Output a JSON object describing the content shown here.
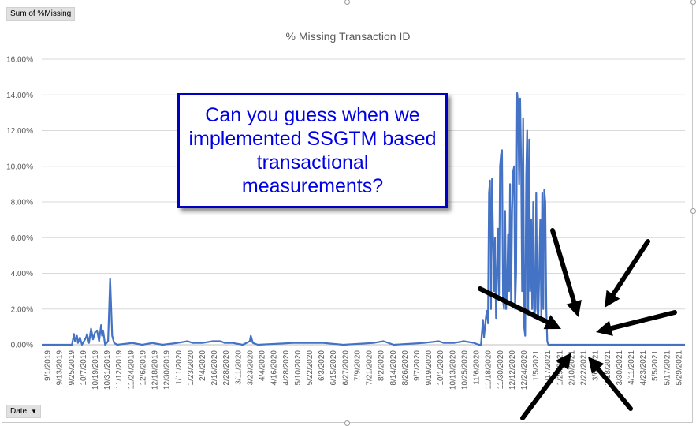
{
  "filter_button": {
    "label": "Sum of %Missing"
  },
  "axis_button": {
    "label": "Date"
  },
  "chart_data": {
    "type": "line",
    "title": "% Missing Transaction ID",
    "xlabel": "",
    "ylabel": "",
    "ylim": [
      0,
      0.16
    ],
    "ytick_labels": [
      "0.00%",
      "2.00%",
      "4.00%",
      "6.00%",
      "8.00%",
      "10.00%",
      "12.00%",
      "14.00%",
      "16.00%"
    ],
    "yticks": [
      0,
      0.02,
      0.04,
      0.06,
      0.08,
      0.1,
      0.12,
      0.14,
      0.16
    ],
    "grid": true,
    "line_color": "#4472C4",
    "xtick_labels": [
      "9/1/2019",
      "9/13/2019",
      "9/25/2019",
      "10/7/2019",
      "10/19/2019",
      "10/31/2019",
      "11/12/2019",
      "11/24/2019",
      "12/6/2019",
      "12/18/2019",
      "12/30/2019",
      "1/11/2020",
      "1/23/2020",
      "2/4/2020",
      "2/16/2020",
      "2/28/2020",
      "3/11/2020",
      "3/23/2020",
      "4/4/2020",
      "4/16/2020",
      "4/28/2020",
      "5/10/2020",
      "5/22/2020",
      "6/3/2020",
      "6/15/2020",
      "6/27/2020",
      "7/9/2020",
      "7/21/2020",
      "8/2/2020",
      "8/14/2020",
      "8/26/2020",
      "9/7/2020",
      "9/19/2020",
      "10/1/2020",
      "10/13/2020",
      "10/25/2020",
      "11/6/2020",
      "11/18/2020",
      "11/30/2020",
      "12/12/2020",
      "12/24/2020",
      "1/5/2021",
      "1/17/2021",
      "1/29/2021",
      "2/10/2021",
      "2/22/2021",
      "3/6/2021",
      "3/18/2021",
      "3/30/2021",
      "4/11/2021",
      "4/23/2021",
      "5/5/2021",
      "5/17/2021",
      "5/29/2021"
    ],
    "series": [
      {
        "points": [
          [
            0,
            0
          ],
          [
            30,
            0
          ],
          [
            32,
            0.006
          ],
          [
            33,
            0.002
          ],
          [
            35,
            0.005
          ],
          [
            36,
            0.001
          ],
          [
            38,
            0.004
          ],
          [
            40,
            0
          ],
          [
            44,
            0.004
          ],
          [
            45,
            0.006
          ],
          [
            47,
            0.001
          ],
          [
            49,
            0.009
          ],
          [
            51,
            0.003
          ],
          [
            53,
            0.007
          ],
          [
            55,
            0.008
          ],
          [
            57,
            0.002
          ],
          [
            59,
            0.011
          ],
          [
            60,
            0.005
          ],
          [
            61,
            0.008
          ],
          [
            63,
            0
          ],
          [
            66,
            0.002
          ],
          [
            68,
            0.037
          ],
          [
            70,
            0.005
          ],
          [
            72,
            0.001
          ],
          [
            75,
            0
          ],
          [
            90,
            0.001
          ],
          [
            100,
            0
          ],
          [
            110,
            0.001
          ],
          [
            120,
            0
          ],
          [
            135,
            0.001
          ],
          [
            145,
            0.002
          ],
          [
            150,
            0.001
          ],
          [
            160,
            0.001
          ],
          [
            170,
            0.002
          ],
          [
            178,
            0.002
          ],
          [
            182,
            0.001
          ],
          [
            190,
            0.001
          ],
          [
            200,
            0
          ],
          [
            207,
            0.002
          ],
          [
            208,
            0.005
          ],
          [
            210,
            0.001
          ],
          [
            215,
            0
          ],
          [
            250,
            0.001
          ],
          [
            280,
            0.001
          ],
          [
            300,
            0
          ],
          [
            330,
            0.001
          ],
          [
            340,
            0.002
          ],
          [
            350,
            0
          ],
          [
            380,
            0.001
          ],
          [
            395,
            0.002
          ],
          [
            400,
            0.001
          ],
          [
            410,
            0.001
          ],
          [
            420,
            0.002
          ],
          [
            430,
            0.001
          ],
          [
            435,
            0
          ],
          [
            437,
            0
          ],
          [
            439,
            0.014
          ],
          [
            440,
            0.004
          ],
          [
            442,
            0.016
          ],
          [
            443,
            0.019
          ],
          [
            444,
            0.012
          ],
          [
            445,
            0.085
          ],
          [
            446,
            0.092
          ],
          [
            447,
            0.02
          ],
          [
            448,
            0.093
          ],
          [
            450,
            0.03
          ],
          [
            451,
            0.06
          ],
          [
            452,
            0.015
          ],
          [
            454,
            0.065
          ],
          [
            455,
            0.028
          ],
          [
            456,
            0.1
          ],
          [
            457,
            0.107
          ],
          [
            458,
            0.109
          ],
          [
            459,
            0.025
          ],
          [
            460,
            0.02
          ],
          [
            461,
            0.075
          ],
          [
            462,
            0.02
          ],
          [
            463,
            0.03
          ],
          [
            464,
            0.062
          ],
          [
            465,
            0.03
          ],
          [
            466,
            0.09
          ],
          [
            467,
            0.022
          ],
          [
            468,
            0.075
          ],
          [
            469,
            0.097
          ],
          [
            470,
            0.1
          ],
          [
            471,
            0.02
          ],
          [
            472,
            0.04
          ],
          [
            473,
            0.141
          ],
          [
            474,
            0.135
          ],
          [
            475,
            0.09
          ],
          [
            476,
            0.138
          ],
          [
            477,
            0.1
          ],
          [
            478,
            0.03
          ],
          [
            479,
            0.127
          ],
          [
            480,
            0.01
          ],
          [
            481,
            0.005
          ],
          [
            482,
            0.095
          ],
          [
            483,
            0.12
          ],
          [
            484,
            0.018
          ],
          [
            485,
            0.115
          ],
          [
            486,
            0.03
          ],
          [
            487,
            0.07
          ],
          [
            488,
            0.02
          ],
          [
            489,
            0.08
          ],
          [
            490,
            0.015
          ],
          [
            491,
            0.02
          ],
          [
            492,
            0.085
          ],
          [
            493,
            0.02
          ],
          [
            494,
            0.015
          ],
          [
            495,
            0.04
          ],
          [
            496,
            0.07
          ],
          [
            497,
            0.015
          ],
          [
            498,
            0.085
          ],
          [
            499,
            0.02
          ],
          [
            500,
            0.087
          ],
          [
            501,
            0.08
          ],
          [
            502,
            0.02
          ],
          [
            503,
            0.002
          ],
          [
            504,
            0
          ],
          [
            640,
            0
          ]
        ]
      }
    ]
  },
  "callout": {
    "text": "Can you guess when we implemented SSGTM based transactional measurements?"
  }
}
